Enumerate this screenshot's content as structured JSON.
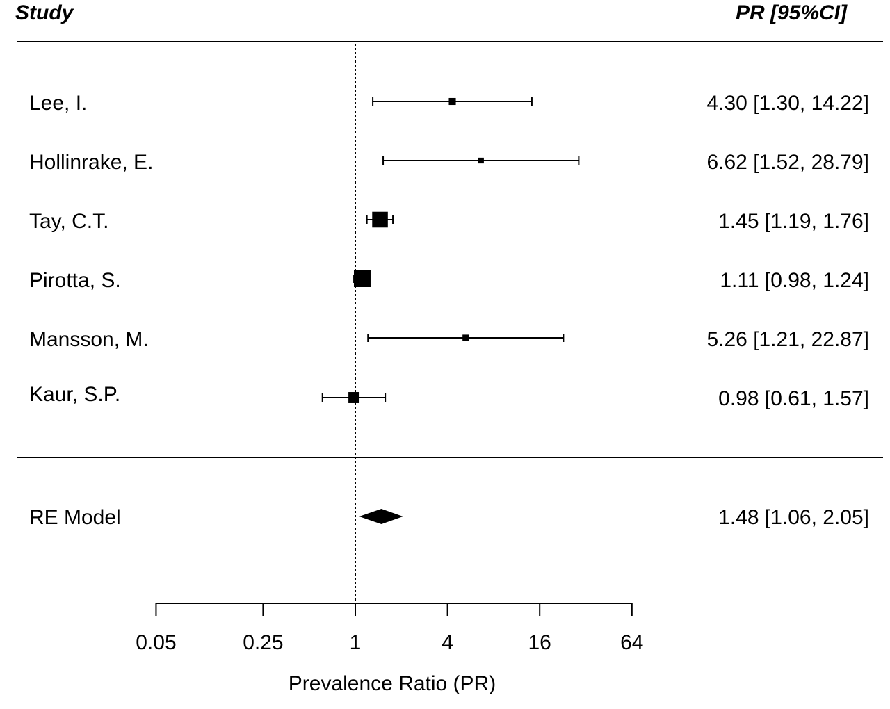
{
  "chart_data": {
    "type": "forest",
    "header": {
      "study_label": "Study",
      "effect_label": "PR  [95%CI]"
    },
    "studies": [
      {
        "name": "Lee, I.",
        "estimate": 4.3,
        "lower": 1.3,
        "upper": 14.22,
        "weight": 0.06,
        "text": "4.30 [1.30, 14.22]"
      },
      {
        "name": "Hollinrake, E.",
        "estimate": 6.62,
        "lower": 1.52,
        "upper": 28.79,
        "weight": 0.04,
        "text": "6.62 [1.52, 28.79]"
      },
      {
        "name": "Tay, C.T.",
        "estimate": 1.45,
        "lower": 1.19,
        "upper": 1.76,
        "weight": 0.3,
        "text": "1.45 [1.19,  1.76]"
      },
      {
        "name": "Pirotta, S.",
        "estimate": 1.11,
        "lower": 0.98,
        "upper": 1.24,
        "weight": 0.34,
        "text": "1.11 [0.98,  1.24]"
      },
      {
        "name": "Mansson, M.",
        "estimate": 5.26,
        "lower": 1.21,
        "upper": 22.87,
        "weight": 0.05,
        "text": "5.26 [1.21, 22.87]"
      },
      {
        "name": "Kaur, S.P.",
        "estimate": 0.98,
        "lower": 0.61,
        "upper": 1.57,
        "weight": 0.15,
        "text": "0.98 [0.61,  1.57]"
      }
    ],
    "summary": {
      "name": "RE Model",
      "estimate": 1.48,
      "lower": 1.06,
      "upper": 2.05,
      "text": "1.48 [1.06,  2.05]"
    },
    "x_axis": {
      "label": "Prevalence Ratio (PR)",
      "scale": "log",
      "ticks": [
        0.05,
        0.25,
        1,
        4,
        16,
        64
      ],
      "tick_labels": [
        "0.05",
        "0.25",
        "1",
        "4",
        "16",
        "64"
      ],
      "reference_line": 1
    }
  }
}
